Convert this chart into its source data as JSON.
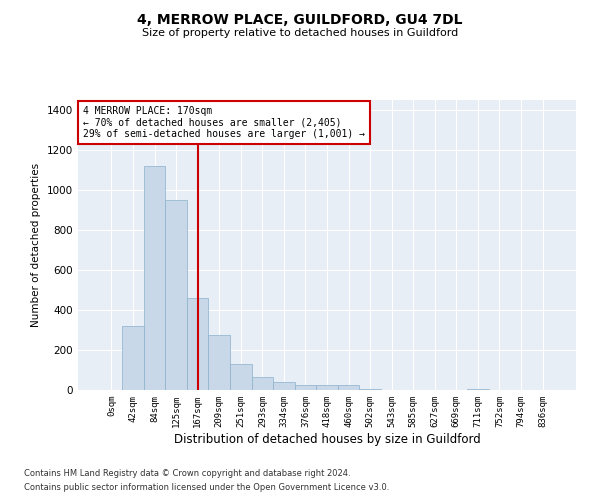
{
  "title": "4, MERROW PLACE, GUILDFORD, GU4 7DL",
  "subtitle": "Size of property relative to detached houses in Guildford",
  "xlabel": "Distribution of detached houses by size in Guildford",
  "ylabel": "Number of detached properties",
  "bar_color": "#c8d8e8",
  "bar_edge_color": "#8ab0cc",
  "background_color": "#e8eef5",
  "grid_color": "#ffffff",
  "vline_x": 4,
  "vline_color": "#cc0000",
  "annotation_text": "4 MERROW PLACE: 170sqm\n← 70% of detached houses are smaller (2,405)\n29% of semi-detached houses are larger (1,001) →",
  "annotation_box_color": "#ffffff",
  "annotation_box_edge": "#cc0000",
  "categories": [
    "0sqm",
    "42sqm",
    "84sqm",
    "125sqm",
    "167sqm",
    "209sqm",
    "251sqm",
    "293sqm",
    "334sqm",
    "376sqm",
    "418sqm",
    "460sqm",
    "502sqm",
    "543sqm",
    "585sqm",
    "627sqm",
    "669sqm",
    "711sqm",
    "752sqm",
    "794sqm",
    "836sqm"
  ],
  "values": [
    2,
    320,
    1120,
    950,
    460,
    275,
    130,
    65,
    40,
    25,
    25,
    25,
    5,
    0,
    0,
    0,
    0,
    5,
    0,
    0,
    0
  ],
  "ylim": [
    0,
    1450
  ],
  "yticks": [
    0,
    200,
    400,
    600,
    800,
    1000,
    1200,
    1400
  ],
  "footnote1": "Contains HM Land Registry data © Crown copyright and database right 2024.",
  "footnote2": "Contains public sector information licensed under the Open Government Licence v3.0."
}
